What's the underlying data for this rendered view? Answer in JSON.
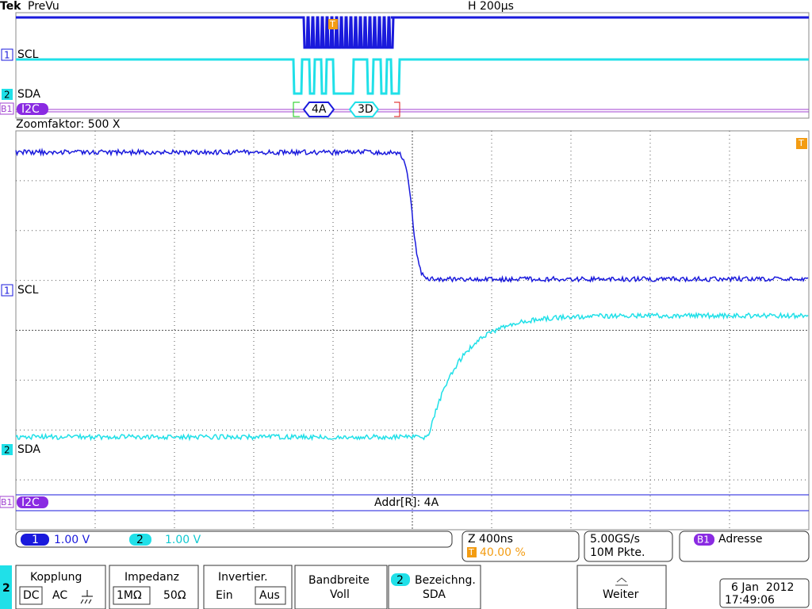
{
  "header": {
    "brand": "Tek",
    "mode": "PreVu",
    "timebase": "H 200µs"
  },
  "overview": {
    "ch1_num": "1",
    "ch1_label": "SCL",
    "ch2_num": "2",
    "ch2_label": "SDA",
    "bus_num": "B1",
    "bus_label": "I2C",
    "packets": [
      "4A",
      "3D"
    ],
    "trigger_marker": "T"
  },
  "zoom": {
    "title": "Zoomfaktor: 500 X",
    "ch1_num": "1",
    "ch1_label": "SCL",
    "ch2_num": "2",
    "ch2_label": "SDA",
    "bus_num": "B1",
    "bus_label": "I2C",
    "decode": "Addr[R]: 4A",
    "trigger_marker": "T"
  },
  "status": {
    "ch1_num": "1",
    "ch1_scale": "1.00 V",
    "ch2_num": "2",
    "ch2_scale": "1.00 V",
    "zoom": "Z 400ns",
    "trigger_marker": "T",
    "trigger_pos": "40.00 %",
    "sample_rate": "5.00GS/s",
    "record_length": "10M Pkte.",
    "bus_num": "B1",
    "bus_trigger": "Adresse"
  },
  "menu": {
    "channel": "2",
    "coupling": {
      "title": "Kopplung",
      "options": [
        "DC",
        "AC"
      ]
    },
    "impedance": {
      "title": "Impedanz",
      "options": [
        "1MΩ",
        "50Ω"
      ]
    },
    "invert": {
      "title": "Invertier.",
      "options": [
        "Ein",
        "Aus"
      ]
    },
    "bandwidth": {
      "title": "Bandbreite",
      "value": "Voll"
    },
    "label": {
      "num": "2",
      "title": "Bezeichng.",
      "value": "SDA"
    },
    "more": "Weiter"
  },
  "clock": {
    "date": "6 Jan  2012",
    "time": "17:49:06"
  }
}
